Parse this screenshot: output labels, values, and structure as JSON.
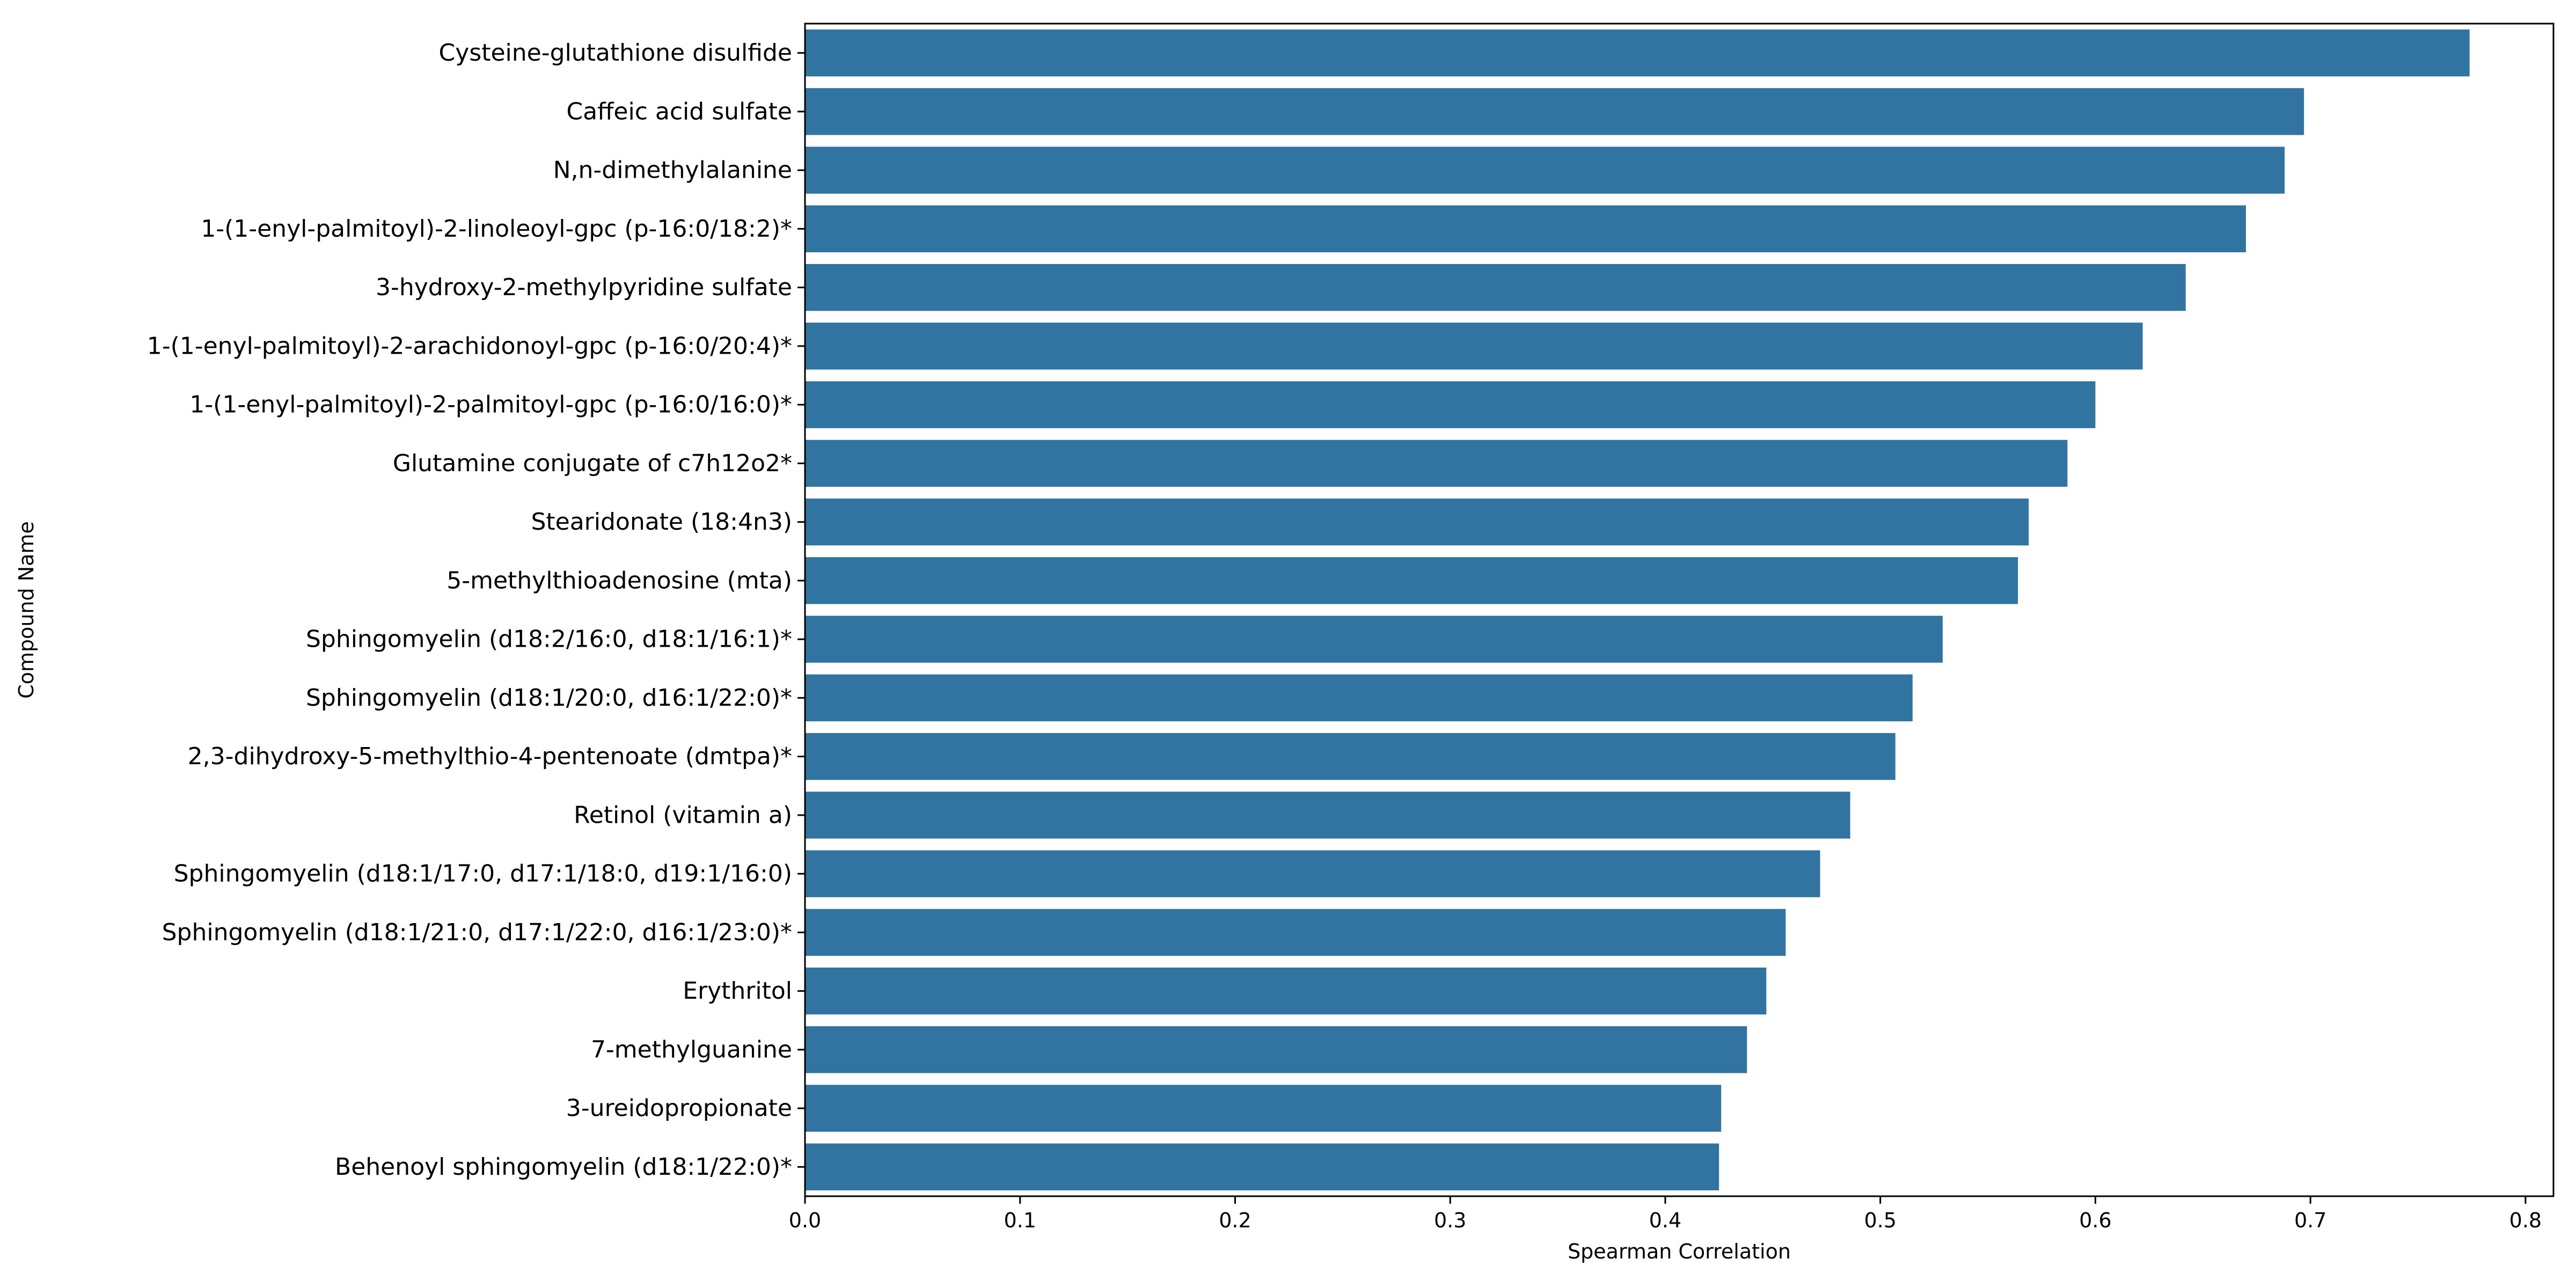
{
  "chart_data": {
    "type": "bar",
    "orientation": "horizontal",
    "categories": [
      "Cysteine-glutathione disulfide",
      "Caffeic acid sulfate",
      "N,n-dimethylalanine",
      "1-(1-enyl-palmitoyl)-2-linoleoyl-gpc (p-16:0/18:2)*",
      "3-hydroxy-2-methylpyridine sulfate",
      "1-(1-enyl-palmitoyl)-2-arachidonoyl-gpc (p-16:0/20:4)*",
      "1-(1-enyl-palmitoyl)-2-palmitoyl-gpc (p-16:0/16:0)*",
      "Glutamine conjugate of c7h12o2*",
      "Stearidonate (18:4n3)",
      "5-methylthioadenosine (mta)",
      "Sphingomyelin (d18:2/16:0, d18:1/16:1)*",
      "Sphingomyelin (d18:1/20:0, d16:1/22:0)*",
      "2,3-dihydroxy-5-methylthio-4-pentenoate (dmtpa)*",
      "Retinol (vitamin a)",
      "Sphingomyelin (d18:1/17:0, d17:1/18:0, d19:1/16:0)",
      "Sphingomyelin (d18:1/21:0, d17:1/22:0, d16:1/23:0)*",
      "Erythritol",
      "7-methylguanine",
      "3-ureidopropionate",
      "Behenoyl sphingomyelin (d18:1/22:0)*"
    ],
    "values": [
      0.774,
      0.697,
      0.688,
      0.67,
      0.642,
      0.622,
      0.6,
      0.587,
      0.569,
      0.564,
      0.529,
      0.515,
      0.507,
      0.486,
      0.472,
      0.456,
      0.447,
      0.438,
      0.426,
      0.425
    ],
    "xlabel": "Spearman Correlation",
    "ylabel": "Compound Name",
    "title": "",
    "xlim": [
      0,
      0.813
    ],
    "xticks": [
      0.0,
      0.1,
      0.2,
      0.3,
      0.4,
      0.5,
      0.6,
      0.7,
      0.8
    ],
    "xtick_labels": [
      "0.0",
      "0.1",
      "0.2",
      "0.3",
      "0.4",
      "0.5",
      "0.6",
      "0.7",
      "0.8"
    ],
    "grid": false,
    "legend": "none",
    "bar_color": "#3274a1"
  }
}
